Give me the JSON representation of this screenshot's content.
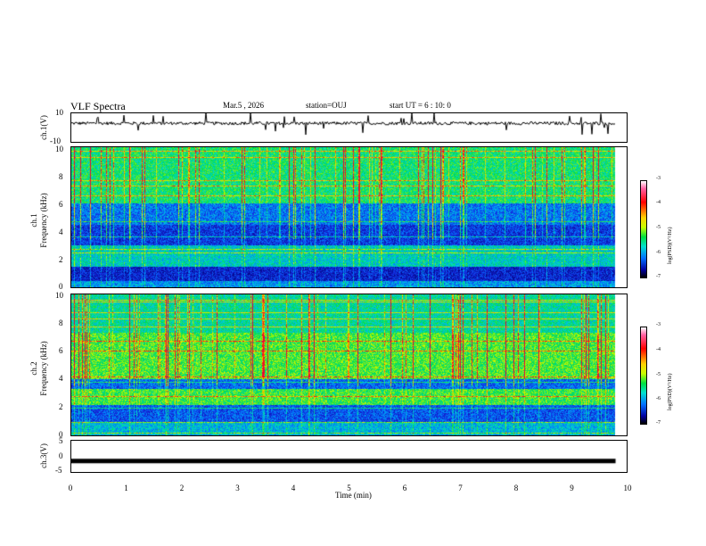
{
  "header": {
    "title": "VLF Spectra",
    "date": "Mar.5 , 2026",
    "station": "station=OUJ",
    "start": "start UT =  6 : 10: 0"
  },
  "chart_data": [
    {
      "type": "line",
      "name": "ch1-waveform",
      "ylabel": "ch.1(V)",
      "ylim": [
        -10,
        10
      ],
      "yticks": [
        "10",
        "-10"
      ],
      "baseline": 3,
      "xlim": [
        0,
        10
      ]
    },
    {
      "type": "heatmap",
      "name": "ch1-spectrogram",
      "ylabel_line1": "ch.1",
      "ylabel_line2": "Frequency (kHz)",
      "ylim": [
        0,
        10
      ],
      "yticks": [
        "0",
        "2",
        "4",
        "6",
        "8",
        "10"
      ],
      "colorbar": {
        "ticks": [
          "-3",
          "-4",
          "-5",
          "-6",
          "-7"
        ],
        "label": "log(PSD)(V²/Hz)"
      }
    },
    {
      "type": "heatmap",
      "name": "ch2-spectrogram",
      "ylabel_line1": "ch.2",
      "ylabel_line2": "Frequency (kHz)",
      "ylim": [
        0,
        10
      ],
      "yticks": [
        "0",
        "2",
        "4",
        "6",
        "8",
        "10"
      ],
      "colorbar": {
        "ticks": [
          "-3",
          "-4",
          "-5",
          "-6",
          "-7"
        ],
        "label": "log(PSD)(V²/Hz)"
      }
    },
    {
      "type": "line",
      "name": "ch3-waveform",
      "ylabel": "ch.3(V)",
      "ylim": [
        -5,
        5
      ],
      "yticks": [
        "5",
        "0",
        "-5"
      ],
      "baseline": -1.5,
      "xlim": [
        0,
        10
      ]
    }
  ],
  "xaxis": {
    "label": "Time (min)",
    "ticks": [
      "0",
      "1",
      "2",
      "3",
      "4",
      "5",
      "6",
      "7",
      "8",
      "9",
      "10"
    ],
    "xlim": [
      0,
      10
    ],
    "data_end": 9.8
  },
  "colors": {
    "background": "#1a3fd8"
  }
}
